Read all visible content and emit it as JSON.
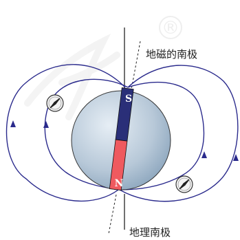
{
  "labels": {
    "magnetic_south_pole": "地磁的南极",
    "geographic_south_pole": "地理南极"
  },
  "magnet": {
    "top_pole": "S",
    "bottom_pole": "N"
  },
  "watermark": {
    "registered_mark": "®"
  },
  "colors": {
    "field_line": "#2a2a8c",
    "magnet_south": "#2a2f78",
    "magnet_north": "#ef5a5f",
    "earth_light": "#d9e4ee",
    "earth_dark": "#8fa8bf",
    "axis_line": "#222222"
  },
  "icons": [
    "compass-needle-icon",
    "registered-icon"
  ]
}
